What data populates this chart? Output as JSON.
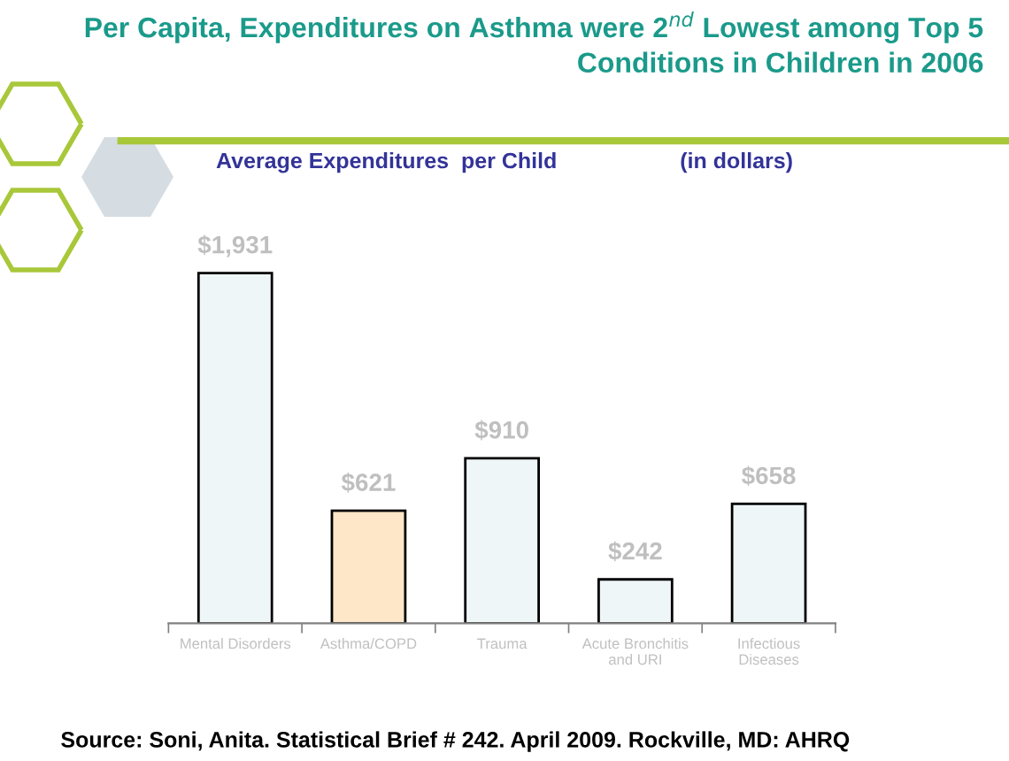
{
  "chart_data": {
    "type": "bar",
    "title": "Per Capita, Expenditures on Asthma were 2$^{nd}$ Lowest among Top 5 Conditions in Children in 2006",
    "subtitle": "Average Expenditures  per Child                    (in dollars)",
    "categories": [
      "Mental Disorders",
      "Asthma/COPD",
      "Trauma",
      "Acute Bronchitis\nand URI",
      "Infectious\nDiseases"
    ],
    "values": [
      1931,
      621,
      910,
      242,
      658
    ],
    "value_labels": [
      "$1,931",
      "$621",
      "$910",
      "$242",
      "$658"
    ],
    "colors": [
      "#eef6f8",
      "#fde7c8",
      "#eef6f8",
      "#eef6f8",
      "#eef6f8"
    ],
    "annotations": [
      "Source: Soni, Anita. Statistical Brief # 242. April 2009. Rockville, MD: AHRQ"
    ]
  }
}
